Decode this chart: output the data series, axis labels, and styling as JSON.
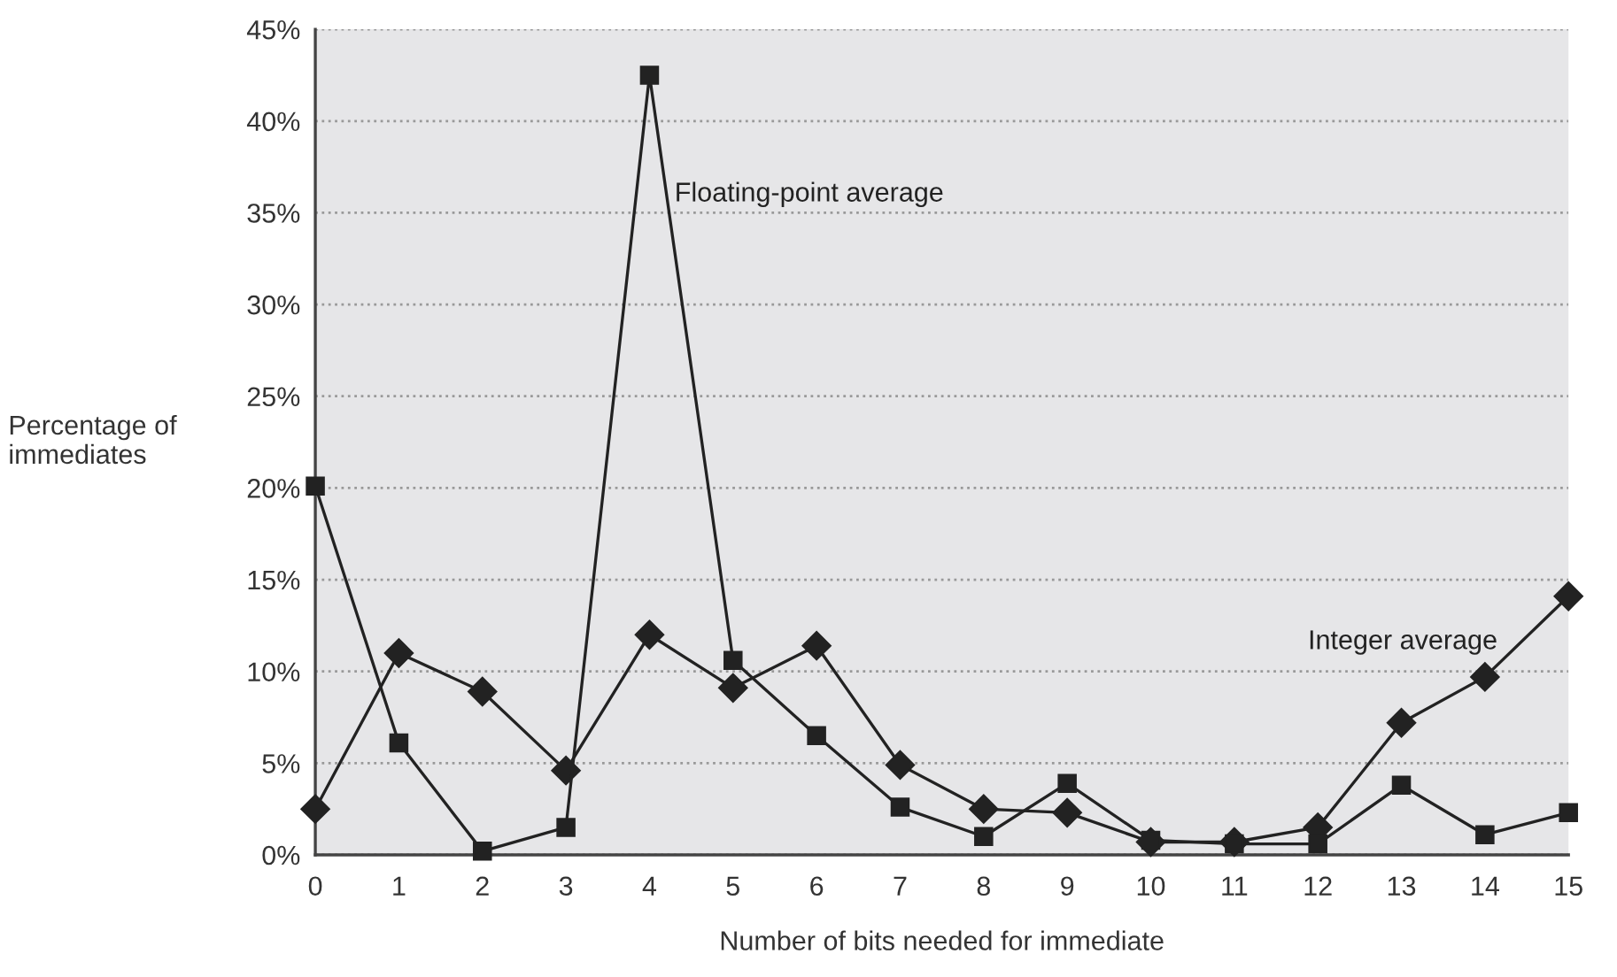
{
  "chart_data": {
    "type": "line",
    "xlabel": "Number of bits needed for immediate",
    "ylabel": "Percentage of\nimmediates",
    "x": [
      0,
      1,
      2,
      3,
      4,
      5,
      6,
      7,
      8,
      9,
      10,
      11,
      12,
      13,
      14,
      15
    ],
    "series": [
      {
        "name": "Floating-point average",
        "color": "#222222",
        "marker": "square",
        "values": [
          20.1,
          6.1,
          0.2,
          1.5,
          42.5,
          10.6,
          6.5,
          2.6,
          1.0,
          3.9,
          0.8,
          0.6,
          0.6,
          3.8,
          1.1,
          2.3
        ]
      },
      {
        "name": "Integer average",
        "color": "#222222",
        "marker": "diamond",
        "values": [
          2.5,
          11.0,
          8.9,
          4.6,
          12.0,
          9.1,
          11.4,
          4.9,
          2.5,
          2.3,
          0.7,
          0.7,
          1.5,
          7.2,
          9.7,
          14.1
        ]
      }
    ],
    "xlim": [
      0,
      15
    ],
    "xticks": [
      0,
      1,
      2,
      3,
      4,
      5,
      6,
      7,
      8,
      9,
      10,
      11,
      12,
      13,
      14,
      15
    ],
    "ylim": [
      0,
      45
    ],
    "yticks": [
      {
        "value": 0,
        "label": "0%"
      },
      {
        "value": 5,
        "label": "5%"
      },
      {
        "value": 10,
        "label": "10%"
      },
      {
        "value": 15,
        "label": "15%"
      },
      {
        "value": 20,
        "label": "20%"
      },
      {
        "value": 25,
        "label": "25%"
      },
      {
        "value": 30,
        "label": "30%"
      },
      {
        "value": 35,
        "label": "35%"
      },
      {
        "value": 40,
        "label": "40%"
      },
      {
        "value": 45,
        "label": "45%"
      }
    ],
    "grid": "y",
    "line_style": "solid",
    "legend": false
  }
}
